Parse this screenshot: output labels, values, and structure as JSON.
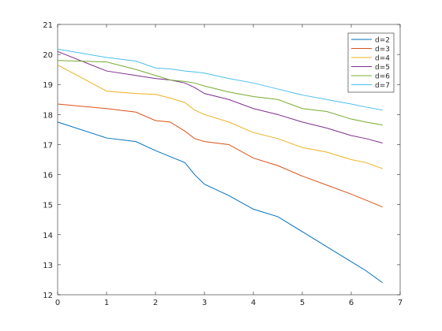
{
  "chart_data": {
    "type": "line",
    "x": [
      0,
      1,
      1.6,
      2,
      2.3,
      2.6,
      2.8,
      3,
      3.5,
      4,
      4.5,
      5,
      5.5,
      6,
      6.3,
      6.64
    ],
    "series": [
      {
        "name": "d=2",
        "color": "#0072bd",
        "values": [
          17.75,
          17.22,
          17.1,
          16.8,
          16.6,
          16.4,
          16.0,
          15.68,
          15.3,
          14.85,
          14.6,
          14.1,
          13.6,
          13.1,
          12.8,
          12.4
        ]
      },
      {
        "name": "d=3",
        "color": "#d95319",
        "values": [
          18.35,
          18.2,
          18.08,
          17.8,
          17.75,
          17.45,
          17.2,
          17.1,
          17.0,
          16.55,
          16.3,
          15.95,
          15.65,
          15.35,
          15.15,
          14.92
        ]
      },
      {
        "name": "d=4",
        "color": "#edb120",
        "values": [
          19.65,
          18.78,
          18.7,
          18.67,
          18.55,
          18.4,
          18.15,
          18.0,
          17.75,
          17.4,
          17.2,
          16.9,
          16.75,
          16.5,
          16.4,
          16.2
        ]
      },
      {
        "name": "d=5",
        "color": "#7e2f8e",
        "values": [
          20.1,
          19.45,
          19.3,
          19.2,
          19.15,
          19.05,
          18.9,
          18.7,
          18.5,
          18.2,
          18.0,
          17.75,
          17.55,
          17.3,
          17.2,
          17.05
        ]
      },
      {
        "name": "d=6",
        "color": "#77ac30",
        "values": [
          19.8,
          19.75,
          19.5,
          19.3,
          19.15,
          19.1,
          19.05,
          18.95,
          18.75,
          18.6,
          18.5,
          18.2,
          18.1,
          17.85,
          17.75,
          17.65
        ]
      },
      {
        "name": "d=7",
        "color": "#4dbeee",
        "values": [
          20.18,
          19.9,
          19.78,
          19.55,
          19.52,
          19.45,
          19.42,
          19.38,
          19.2,
          19.05,
          18.85,
          18.65,
          18.5,
          18.35,
          18.25,
          18.15
        ]
      }
    ],
    "xlim": [
      0,
      7
    ],
    "xticks": [
      0,
      1,
      2,
      3,
      4,
      5,
      6,
      7
    ],
    "ylim": [
      12,
      21
    ],
    "yticks": [
      12,
      13,
      14,
      15,
      16,
      17,
      18,
      19,
      20,
      21
    ],
    "legend": "upper right"
  }
}
